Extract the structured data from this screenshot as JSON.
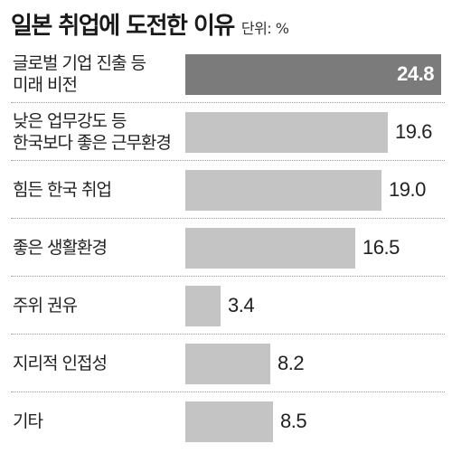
{
  "header": {
    "title": "일본 취업에 도전한 이유",
    "unit": "단위: %"
  },
  "colors": {
    "highlight_bar": "#7b7b7b",
    "bar": "#c4c4c4",
    "text": "#222222"
  },
  "chart_data": {
    "type": "bar",
    "orientation": "horizontal",
    "title": "일본 취업에 도전한 이유",
    "unit": "단위: %",
    "categories": [
      "글로벌 기업 진출 등\n미래 비전",
      "낮은 업무강도 등\n한국보다 좋은 근무환경",
      "힘든 한국 취업",
      "좋은 생활환경",
      "주위 권유",
      "지리적 인접성",
      "기타"
    ],
    "values": [
      24.8,
      19.6,
      19.0,
      16.5,
      3.4,
      8.2,
      8.5
    ],
    "value_labels": [
      "24.8",
      "19.6",
      "19.0",
      "16.5",
      "3.4",
      "8.2",
      "8.5"
    ],
    "highlighted_index": 0,
    "xlim": [
      0,
      24.8
    ],
    "grid": false,
    "legend": "none"
  }
}
